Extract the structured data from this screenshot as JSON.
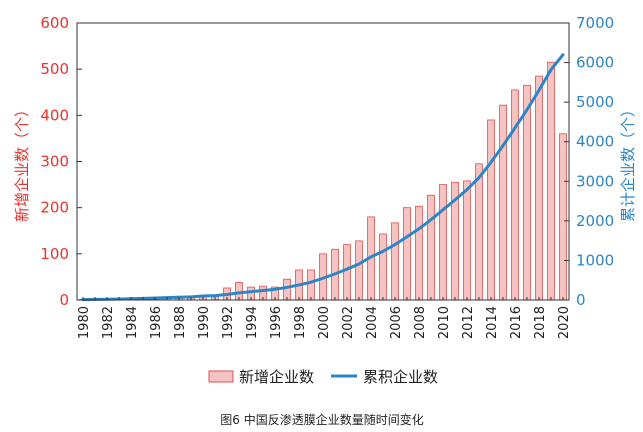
{
  "chart_data": {
    "type": "bar",
    "caption": "图6 中国反渗透膜企业数量随时间变化",
    "ylabel_left": "新增企业数（个）",
    "ylabel_right": "累计企业数（个）",
    "ylim_left": [
      0,
      600
    ],
    "ylim_right": [
      0,
      7000
    ],
    "yticks_left": [
      "0",
      "100",
      "200",
      "300",
      "400",
      "500",
      "600"
    ],
    "yticks_right": [
      "0",
      "1000",
      "2000",
      "3000",
      "4000",
      "5000",
      "6000",
      "7000"
    ],
    "xticks": [
      "1980",
      "1982",
      "1984",
      "1986",
      "1988",
      "1990",
      "1992",
      "1994",
      "1996",
      "1998",
      "2000",
      "2002",
      "2004",
      "2006",
      "2008",
      "2010",
      "2012",
      "2014",
      "2016",
      "2018",
      "2020"
    ],
    "grid": false,
    "legend_position": "bottom",
    "colors": {
      "bar_fill": "#f6c3c3",
      "bar_edge": "#d9534f",
      "line": "#2b86c8",
      "left_axis": "#e8322e",
      "right_axis": "#2b86c8"
    },
    "categories": [
      1980,
      1981,
      1982,
      1983,
      1984,
      1985,
      1986,
      1987,
      1988,
      1989,
      1990,
      1991,
      1992,
      1993,
      1994,
      1995,
      1996,
      1997,
      1998,
      1999,
      2000,
      2001,
      2002,
      2003,
      2004,
      2005,
      2006,
      2007,
      2008,
      2009,
      2010,
      2011,
      2012,
      2013,
      2014,
      2015,
      2016,
      2017,
      2018,
      2019,
      2020
    ],
    "series": [
      {
        "name": "新增企业数",
        "type": "bar",
        "axis": "left",
        "values": [
          1,
          1,
          2,
          2,
          5,
          3,
          5,
          4,
          8,
          6,
          10,
          8,
          26,
          38,
          28,
          30,
          28,
          45,
          65,
          65,
          100,
          110,
          120,
          128,
          180,
          143,
          167,
          200,
          203,
          227,
          250,
          255,
          258,
          295,
          390,
          422,
          455,
          465,
          485,
          515,
          360
        ]
      },
      {
        "name": "累积企业数",
        "type": "line",
        "axis": "right",
        "values": [
          10,
          15,
          20,
          25,
          30,
          40,
          50,
          60,
          70,
          80,
          100,
          110,
          140,
          180,
          210,
          240,
          270,
          320,
          380,
          450,
          550,
          660,
          780,
          910,
          1090,
          1230,
          1400,
          1600,
          1800,
          2030,
          2280,
          2530,
          2790,
          3090,
          3480,
          3900,
          4350,
          4810,
          5300,
          5820,
          6200
        ]
      }
    ]
  }
}
